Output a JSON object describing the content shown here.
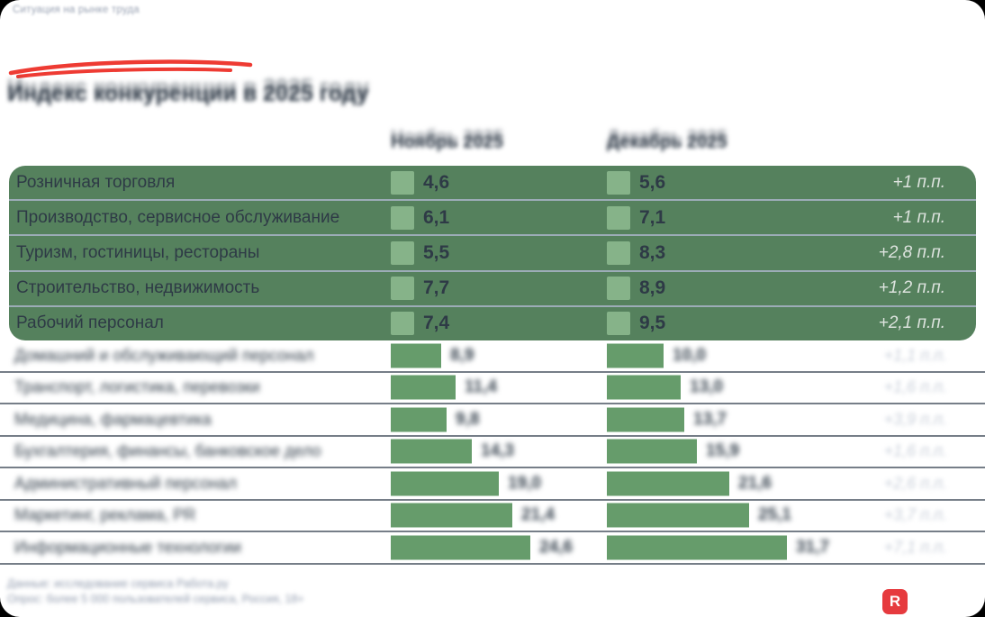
{
  "meta": {
    "top_label": "Ситуация на рынке труда"
  },
  "header": {
    "title": "Индекс конкуренции в 2025 году"
  },
  "columns": [
    {
      "label": "Ноябрь 2025"
    },
    {
      "label": "Декабрь 2025"
    }
  ],
  "rows": [
    {
      "label": "Розничная торговля",
      "v1": "4,6",
      "v2": "5,6",
      "change": "+1 п.п.",
      "highlight": true,
      "blurred": false
    },
    {
      "label": "Производство, сервисное обслуживание",
      "v1": "6,1",
      "v2": "7,1",
      "change": "+1 п.п.",
      "highlight": true,
      "blurred": false
    },
    {
      "label": "Туризм, гостиницы, рестораны",
      "v1": "5,5",
      "v2": "8,3",
      "change": "+2,8 п.п.",
      "highlight": true,
      "blurred": false
    },
    {
      "label": "Строительство, недвижимость",
      "v1": "7,7",
      "v2": "8,9",
      "change": "+1,2 п.п.",
      "highlight": true,
      "blurred": false
    },
    {
      "label": "Рабочий персонал",
      "v1": "7,4",
      "v2": "9,5",
      "change": "+2,1 п.п.",
      "highlight": true,
      "blurred": false
    },
    {
      "label": "Домашний и обслуживающий персонал",
      "v1": "8,9",
      "v2": "10,0",
      "change": "+1,1 п.п.",
      "highlight": false,
      "blurred": true
    },
    {
      "label": "Транспорт, логистика, перевозки",
      "v1": "11,4",
      "v2": "13,0",
      "change": "+1,6 п.п.",
      "highlight": false,
      "blurred": true
    },
    {
      "label": "Медицина, фармацевтика",
      "v1": "9,8",
      "v2": "13,7",
      "change": "+3,9 п.п.",
      "highlight": false,
      "blurred": true
    },
    {
      "label": "Бухгалтерия, финансы, банковское дело",
      "v1": "14,3",
      "v2": "15,9",
      "change": "+1,6 п.п.",
      "highlight": false,
      "blurred": true
    },
    {
      "label": "Административный персонал",
      "v1": "19,0",
      "v2": "21,6",
      "change": "+2,6 п.п.",
      "highlight": false,
      "blurred": true
    },
    {
      "label": "Маркетинг, реклама, PR",
      "v1": "21,4",
      "v2": "25,1",
      "change": "+3,7 п.п.",
      "highlight": false,
      "blurred": true
    },
    {
      "label": "Информационные технологии",
      "v1": "24,6",
      "v2": "31,7",
      "change": "+7,1 п.п.",
      "highlight": false,
      "blurred": true
    }
  ],
  "footer": {
    "line1": "Данные: исследование сервиса Работа.ру",
    "line2": "Опрос: более 5 000 пользователей сервиса, Россия, 18+"
  },
  "logo": {
    "letter": "R"
  },
  "colors": {
    "panel_green": "#55815D",
    "panel_bar_green": "#86B389",
    "bar_green": "#669C6B",
    "accent_red": "#EE3B33",
    "text_dark": "#2F3B47",
    "logo_red": "#E63A3E"
  },
  "chart_data": {
    "type": "bar",
    "title": "Индекс конкуренции в 2025 году",
    "categories": [
      "Розничная торговля",
      "Производство, сервисное обслуживание",
      "Туризм, гостиницы, рестораны",
      "Строительство, недвижимость",
      "Рабочий персонал",
      "Домашний и обслуживающий персонал",
      "Транспорт, логистика, перевозки",
      "Медицина, фармацевтика",
      "Бухгалтерия, финансы, банковское дело",
      "Административный персонал",
      "Маркетинг, реклама, PR",
      "Информационные технологии"
    ],
    "series": [
      {
        "name": "Ноябрь 2025",
        "values": [
          4.6,
          6.1,
          5.5,
          7.7,
          7.4,
          8.9,
          11.4,
          9.8,
          14.3,
          19,
          21.4,
          24.6
        ]
      },
      {
        "name": "Декабрь 2025",
        "values": [
          5.6,
          7.1,
          8.3,
          8.9,
          9.5,
          10,
          13,
          13.7,
          15.9,
          21.6,
          25.1,
          31.7
        ]
      }
    ],
    "changes": [
      "+1 п.п.",
      "+1 п.п.",
      "+2,8 п.п.",
      "+1,2 п.п.",
      "+2,1 п.п.",
      "+1,1 п.п.",
      "+1,6 п.п.",
      "+3,9 п.п.",
      "+1,6 п.п.",
      "+2,6 п.п.",
      "+3,7 п.п.",
      "+7,1 п.п."
    ],
    "highlighted_rows": [
      0,
      1,
      2,
      3,
      4
    ],
    "unit": "п.п.",
    "legend_position": "top",
    "grid": false
  }
}
